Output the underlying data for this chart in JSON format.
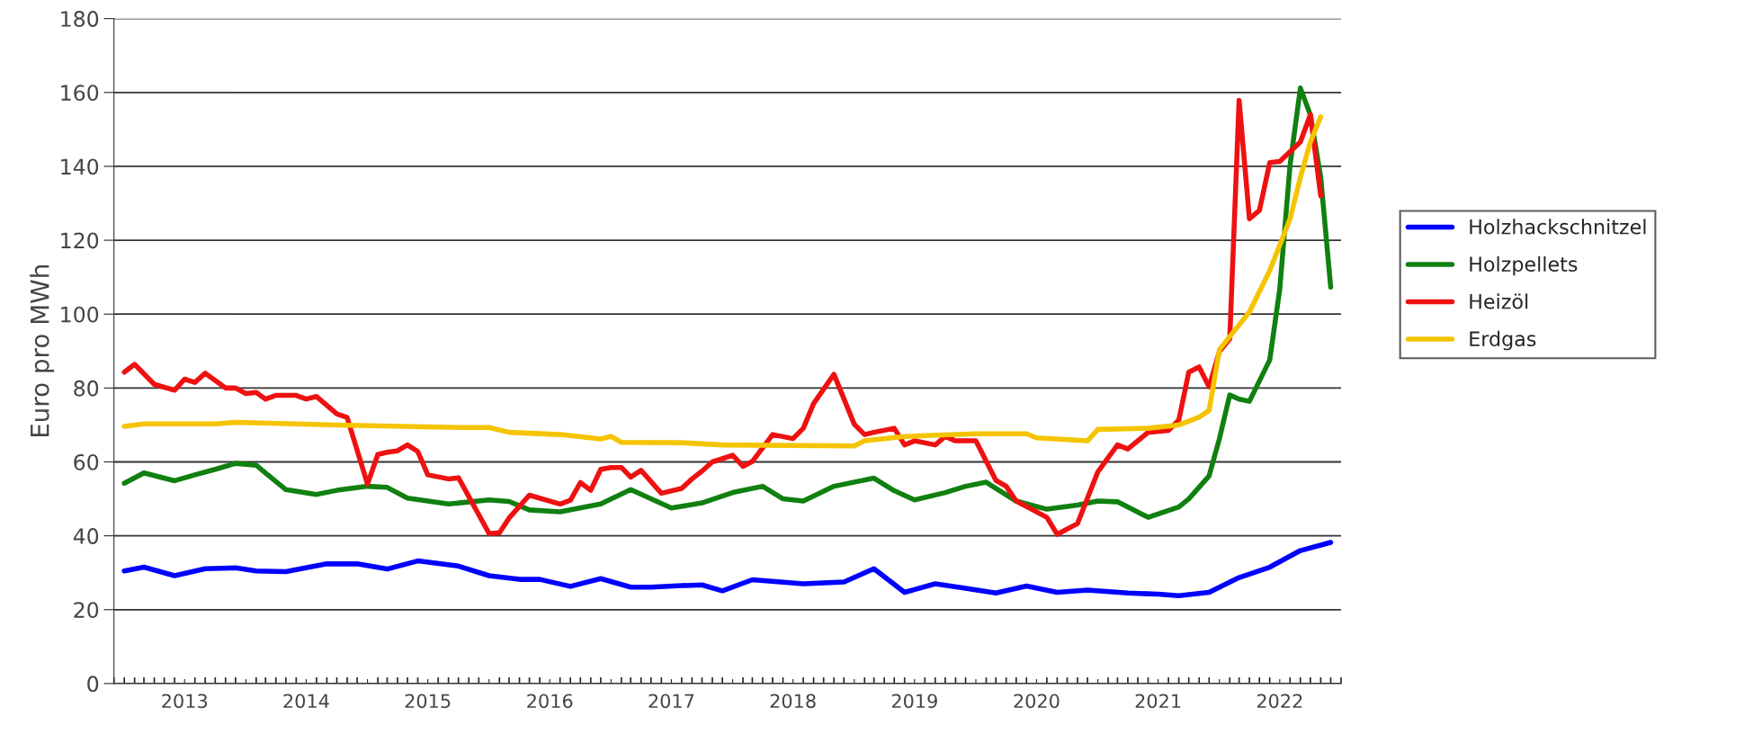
{
  "chart_data": {
    "type": "line",
    "ylabel": "Euro pro MWh",
    "xlim": [
      "2012-12",
      "2023-01"
    ],
    "ylim": [
      0,
      180
    ],
    "yticks": [
      0,
      20,
      40,
      60,
      80,
      100,
      120,
      140,
      160,
      180
    ],
    "xticks": [
      {
        "value": "2013-07",
        "label": "2013"
      },
      {
        "value": "2014-01",
        "label": null
      },
      {
        "value": "2014-07",
        "label": "2014"
      },
      {
        "value": "2015-01",
        "label": null
      },
      {
        "value": "2015-07",
        "label": "2015"
      },
      {
        "value": "2016-01",
        "label": null
      },
      {
        "value": "2016-07",
        "label": "2016"
      },
      {
        "value": "2017-01",
        "label": null
      },
      {
        "value": "2017-07",
        "label": "2017"
      },
      {
        "value": "2018-01",
        "label": null
      },
      {
        "value": "2018-07",
        "label": "2018"
      },
      {
        "value": "2019-01",
        "label": null
      },
      {
        "value": "2019-07",
        "label": "2019"
      },
      {
        "value": "2020-01",
        "label": null
      },
      {
        "value": "2020-07",
        "label": "2020"
      },
      {
        "value": "2021-01",
        "label": null
      },
      {
        "value": "2021-07",
        "label": "2021"
      },
      {
        "value": "2022-01",
        "label": null
      },
      {
        "value": "2022-07",
        "label": "2022"
      }
    ],
    "grid": "y",
    "legend": "right",
    "marker": "none",
    "line_style": "solid",
    "series": [
      {
        "name": "Holzhackschnitzel",
        "color": "#0000ff",
        "x": [
          "2013-01",
          "2013-03",
          "2013-06",
          "2013-09",
          "2013-12",
          "2014-02",
          "2014-05",
          "2014-09",
          "2014-12",
          "2015-03",
          "2015-06",
          "2015-10",
          "2016-01",
          "2016-04",
          "2016-06",
          "2016-09",
          "2016-12",
          "2017-03",
          "2017-05",
          "2017-08",
          "2017-10",
          "2017-12",
          "2018-03",
          "2018-08",
          "2018-12",
          "2019-03",
          "2019-06",
          "2019-09",
          "2019-12",
          "2020-03",
          "2020-06",
          "2020-09",
          "2020-12",
          "2021-04",
          "2021-07",
          "2021-09",
          "2021-12",
          "2022-03",
          "2022-06",
          "2022-09",
          "2022-12"
        ],
        "values": [
          30.5,
          31.5,
          29.2,
          31.1,
          31.3,
          30.5,
          30.3,
          32.4,
          32.4,
          31,
          33.2,
          31.8,
          29.2,
          28.2,
          28.2,
          26.3,
          28.4,
          26.1,
          26.1,
          26.5,
          26.7,
          25.1,
          28.1,
          27,
          27.5,
          31.1,
          24.7,
          27,
          25.8,
          24.5,
          26.4,
          24.7,
          25.3,
          24.5,
          24.2,
          23.8,
          24.7,
          28.7,
          31.5,
          36,
          38.2
        ]
      },
      {
        "name": "Holzpellets",
        "color": "#108010",
        "x": [
          "2013-01",
          "2013-03",
          "2013-06",
          "2013-08",
          "2013-10",
          "2013-12",
          "2014-02",
          "2014-03",
          "2014-05",
          "2014-08",
          "2014-10",
          "2015-01",
          "2015-03",
          "2015-05",
          "2015-09",
          "2016-01",
          "2016-03",
          "2016-05",
          "2016-08",
          "2016-12",
          "2017-03",
          "2017-07",
          "2017-10",
          "2018-01",
          "2018-04",
          "2018-06",
          "2018-08",
          "2018-11",
          "2019-03",
          "2019-05",
          "2019-07",
          "2019-10",
          "2019-12",
          "2020-02",
          "2020-05",
          "2020-08",
          "2020-11",
          "2021-01",
          "2021-03",
          "2021-06",
          "2021-09",
          "2021-10",
          "2021-12",
          "2022-01",
          "2022-02",
          "2022-03",
          "2022-04",
          "2022-06",
          "2022-07",
          "2022-08",
          "2022-09",
          "2022-10",
          "2022-11",
          "2022-12"
        ],
        "values": [
          54.2,
          57,
          54.9,
          56.5,
          58,
          59.6,
          59.1,
          57,
          52.5,
          51.2,
          52.3,
          53.4,
          53.1,
          50.2,
          48.6,
          49.7,
          49.3,
          47,
          46.5,
          48.6,
          52.5,
          47.5,
          48.9,
          51.7,
          53.4,
          50,
          49.4,
          53.4,
          55.6,
          52.2,
          49.7,
          51.7,
          53.4,
          54.5,
          49.4,
          47.2,
          48.3,
          49.4,
          49.2,
          45,
          47.8,
          50,
          56.2,
          66.3,
          78.1,
          77,
          76.4,
          87.6,
          106.7,
          140.4,
          161.2,
          153.9,
          137,
          107.3
        ]
      },
      {
        "name": "Heizöl",
        "color": "#ee1111",
        "x": [
          "2013-01",
          "2013-02",
          "2013-04",
          "2013-06",
          "2013-07",
          "2013-08",
          "2013-09",
          "2013-11",
          "2013-12",
          "2014-01",
          "2014-02",
          "2014-03",
          "2014-04",
          "2014-06",
          "2014-07",
          "2014-08",
          "2014-10",
          "2014-11",
          "2015-01",
          "2015-02",
          "2015-03",
          "2015-04",
          "2015-05",
          "2015-06",
          "2015-07",
          "2015-09",
          "2015-10",
          "2016-01",
          "2016-02",
          "2016-03",
          "2016-05",
          "2016-08",
          "2016-09",
          "2016-10",
          "2016-11",
          "2016-12",
          "2017-01",
          "2017-02",
          "2017-03",
          "2017-04",
          "2017-06",
          "2017-08",
          "2017-09",
          "2017-10",
          "2017-11",
          "2018-01",
          "2018-02",
          "2018-03",
          "2018-05",
          "2018-07",
          "2018-08",
          "2018-09",
          "2018-11",
          "2019-01",
          "2019-02",
          "2019-03",
          "2019-05",
          "2019-06",
          "2019-07",
          "2019-09",
          "2019-10",
          "2019-11",
          "2020-01",
          "2020-03",
          "2020-04",
          "2020-05",
          "2020-08",
          "2020-09",
          "2020-11",
          "2021-01",
          "2021-03",
          "2021-04",
          "2021-06",
          "2021-08",
          "2021-09",
          "2021-10",
          "2021-11",
          "2021-12",
          "2022-01",
          "2022-02",
          "2022-03",
          "2022-04",
          "2022-05",
          "2022-06",
          "2022-07",
          "2022-09",
          "2022-10",
          "2022-11"
        ],
        "values": [
          84.3,
          86.4,
          81,
          79.4,
          82.4,
          81.5,
          84,
          80,
          80,
          78.5,
          78.8,
          77,
          78,
          78,
          77,
          77.7,
          73,
          72,
          54,
          62,
          62.6,
          63,
          64.6,
          62.8,
          56.5,
          55.4,
          55.7,
          40.6,
          40.8,
          44.8,
          51,
          48.6,
          49.6,
          54.4,
          52.3,
          58,
          58.5,
          58.5,
          55.9,
          57.7,
          51.5,
          52.8,
          55.4,
          57.5,
          60,
          61.8,
          58.8,
          60.1,
          67.4,
          66.3,
          69.1,
          75.8,
          83.7,
          70.2,
          67.4,
          68,
          69.1,
          64.6,
          65.7,
          64.6,
          66.9,
          65.7,
          65.7,
          55,
          53.4,
          49.4,
          45,
          40.4,
          43.3,
          57.3,
          64.6,
          63.5,
          68,
          68.5,
          71.3,
          84.3,
          85.7,
          80.3,
          89.9,
          93.3,
          157.9,
          125.8,
          128.1,
          141,
          141.3,
          146.6,
          154,
          132
        ]
      },
      {
        "name": "Erdgas",
        "color": "#f5c400",
        "x": [
          "2013-01",
          "2013-03",
          "2013-10",
          "2013-12",
          "2014-10",
          "2015-10",
          "2016-01",
          "2016-03",
          "2016-08",
          "2016-12",
          "2017-01",
          "2017-02",
          "2017-08",
          "2017-12",
          "2019-01",
          "2019-02",
          "2019-06",
          "2020-01",
          "2020-06",
          "2020-07",
          "2020-12",
          "2021-01",
          "2021-06",
          "2021-09",
          "2021-11",
          "2021-12",
          "2022-01",
          "2022-04",
          "2022-06",
          "2022-08",
          "2022-09",
          "2022-10",
          "2022-11"
        ],
        "values": [
          69.6,
          70.3,
          70.3,
          70.7,
          70,
          69.3,
          69.3,
          68,
          67.4,
          66.2,
          66.9,
          65.3,
          65.2,
          64.6,
          64.3,
          65.7,
          66.9,
          67.6,
          67.6,
          66.5,
          65.7,
          68.8,
          69.1,
          70,
          72.1,
          73.9,
          90.4,
          100.6,
          111.8,
          125.8,
          137,
          146.6,
          153.4
        ]
      }
    ]
  }
}
